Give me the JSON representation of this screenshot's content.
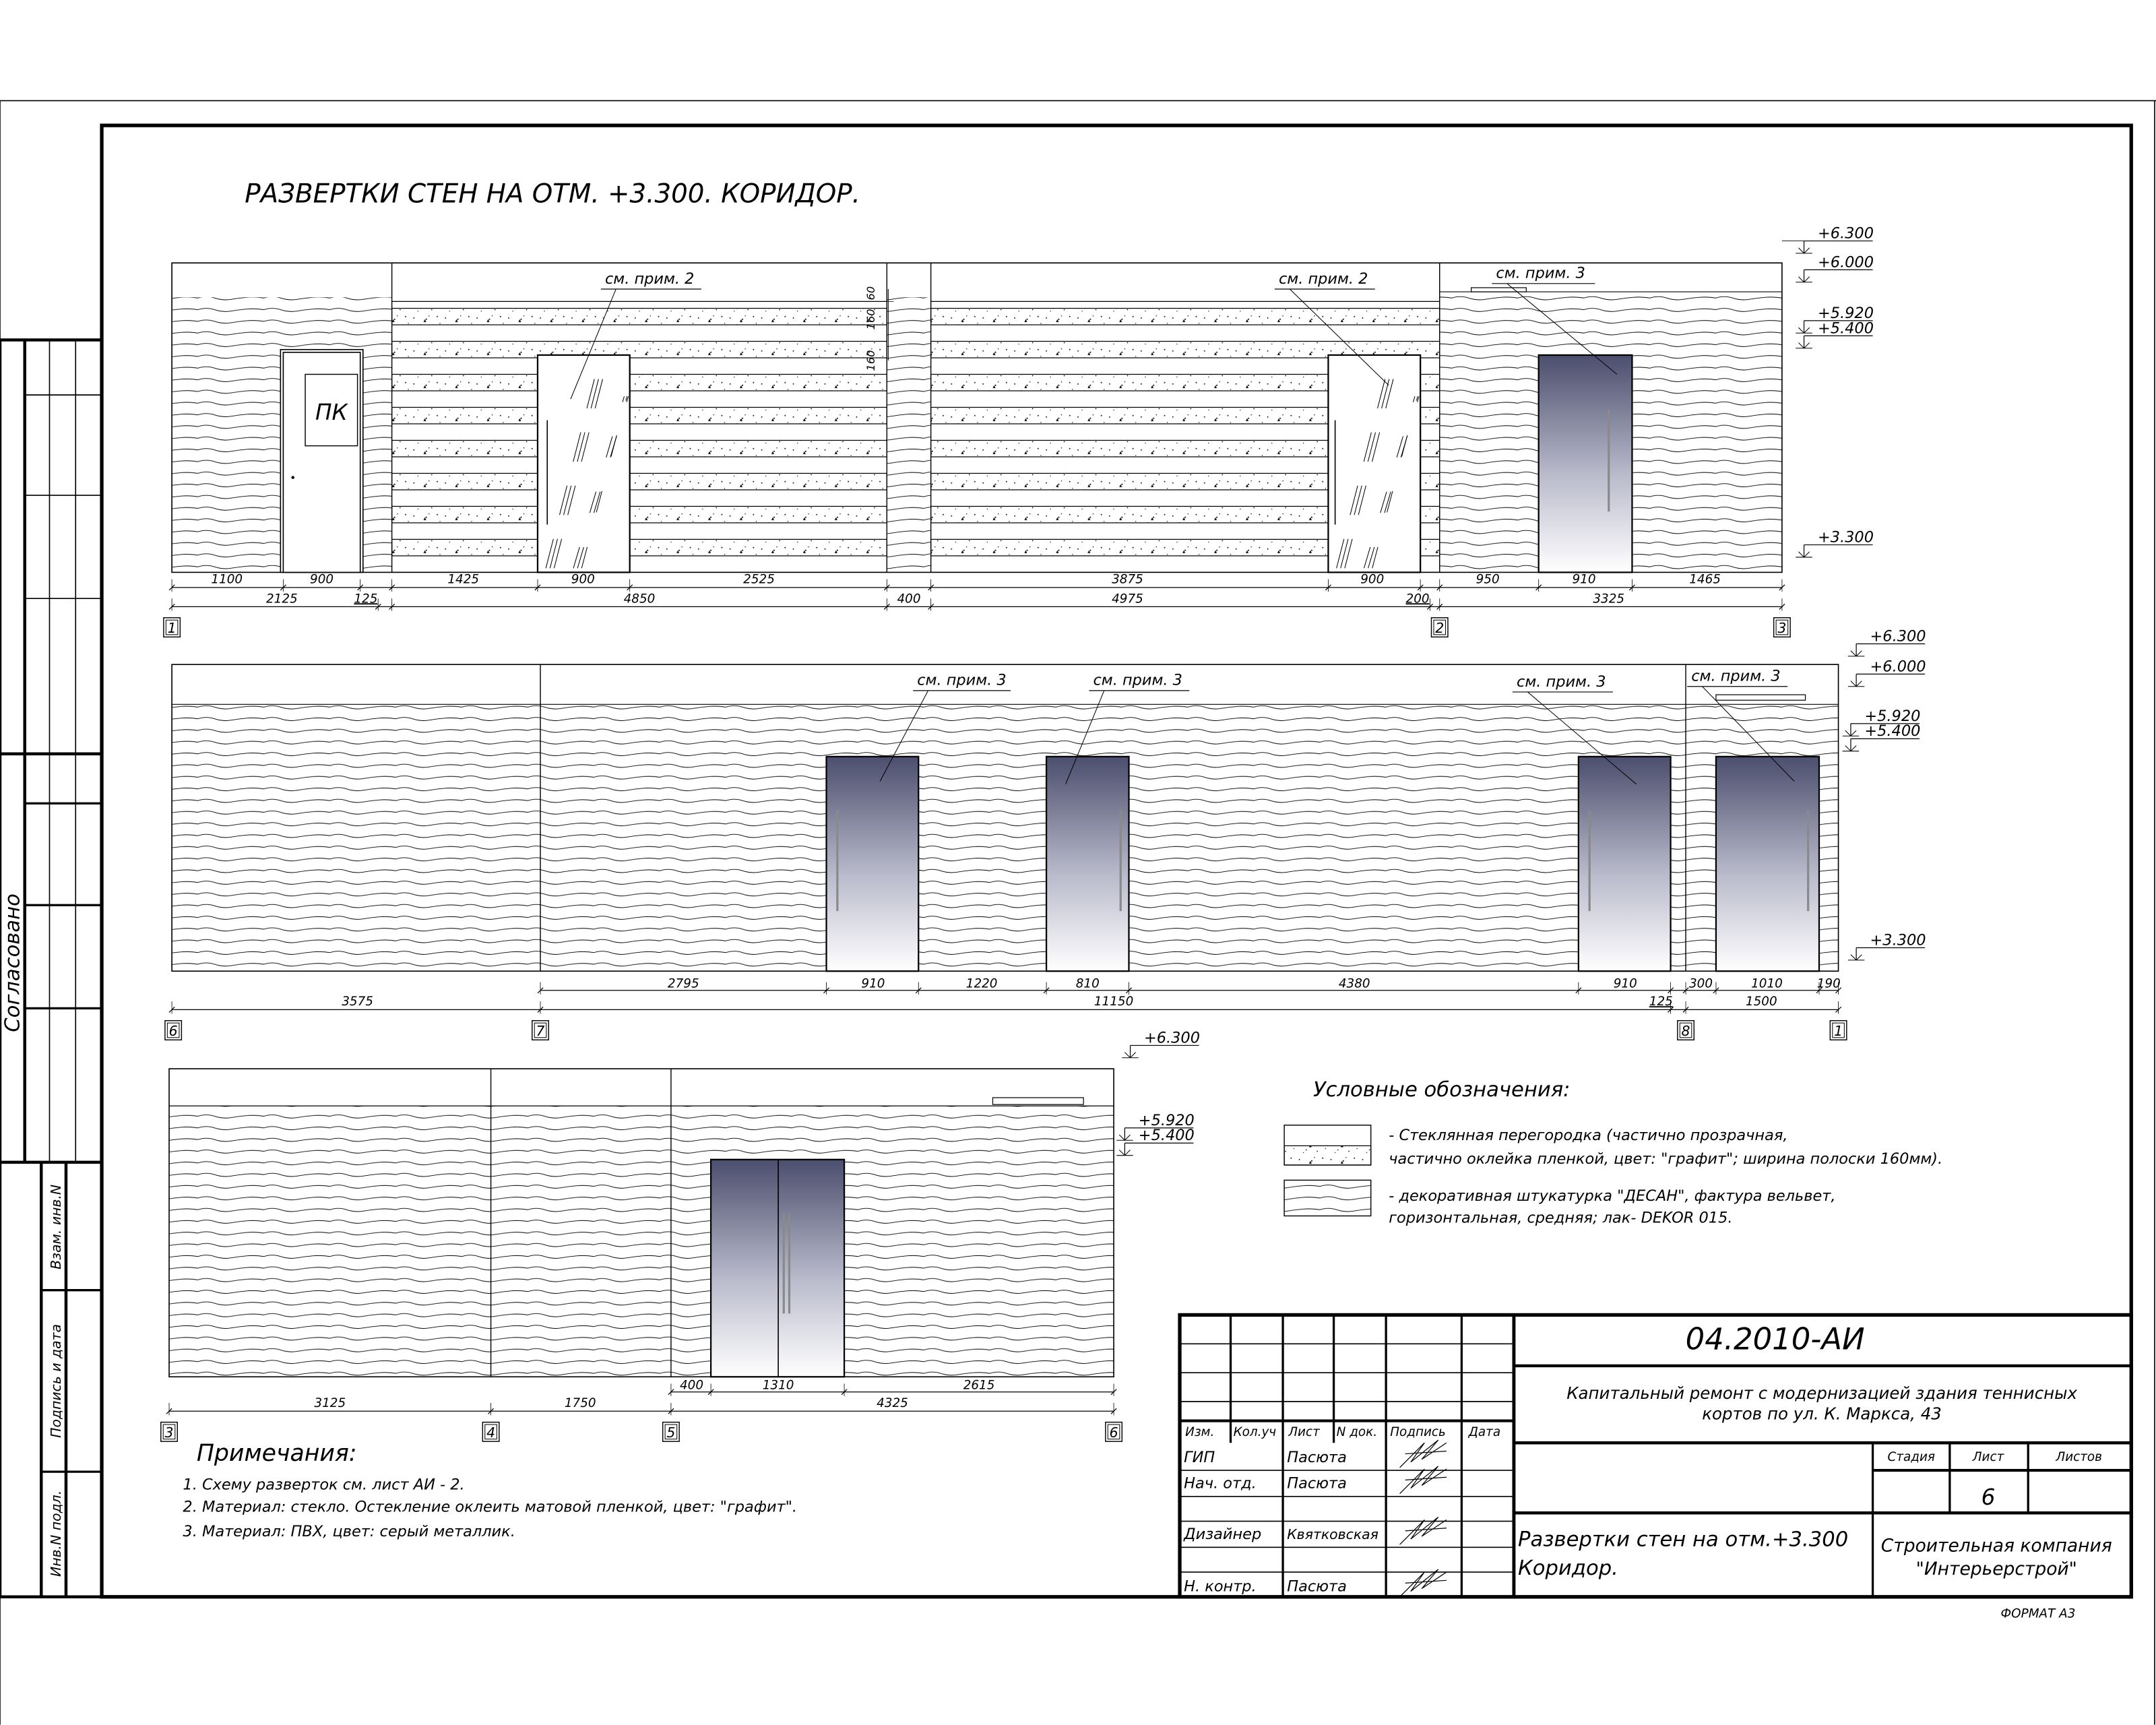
{
  "sheet": {
    "title": "РАЗВЕРТКИ СТЕН НА ОТМ. +3.300. КОРИДОР.",
    "format": "ФОРМАТ А3"
  },
  "colors": {
    "line": "#000000",
    "door_gradient_top": "#4b4e6d",
    "door_gradient_bottom": "#ffffff",
    "handle": "#8a8a8a"
  },
  "left_stamp": {
    "approved": "Согласовано",
    "replaced_inv": "Взам. инв.N",
    "signature_date": "Подпись и дата",
    "inv_original": "Инв.N подл."
  },
  "elevation_1": {
    "door_sign": "ПК",
    "callouts": [
      "см. прим. 2",
      "см. прим. 2",
      "см. прим. 3"
    ],
    "strip_dims": [
      "60",
      "160",
      "160"
    ],
    "dims_row1": [
      "1100",
      "900",
      "1425",
      "900",
      "2525",
      "3875",
      "900",
      "950",
      "910",
      "1465"
    ],
    "dims_row2": [
      "2125",
      "125",
      "4850",
      "400",
      "4975",
      "200",
      "3325"
    ],
    "axes": [
      "1",
      "2",
      "3"
    ],
    "levels": [
      "+6.300",
      "+6.000",
      "+5.920",
      "+5.400",
      "+3.300"
    ]
  },
  "elevation_2": {
    "callouts": [
      "см. прим. 3",
      "см. прим. 3",
      "см. прим. 3",
      "см. прим. 3"
    ],
    "dims_row1": [
      "2795",
      "910",
      "1220",
      "810",
      "4380",
      "910",
      "300",
      "1010",
      "190"
    ],
    "dims_row2": [
      "3575",
      "11150",
      "125",
      "1500"
    ],
    "axes": [
      "6",
      "7",
      "8",
      "1"
    ],
    "levels": [
      "+6.300",
      "+6.000",
      "+5.920",
      "+5.400",
      "+3.300"
    ]
  },
  "elevation_3": {
    "dims_row1": [
      "400",
      "1310",
      "2615"
    ],
    "dims_row2": [
      "3125",
      "1750",
      "4325"
    ],
    "axes": [
      "3",
      "4",
      "5",
      "6"
    ],
    "levels": [
      "+6.300",
      "+5.920",
      "+5.400"
    ]
  },
  "legend": {
    "title": "Условные обозначения:",
    "items": [
      {
        "line1": "- Стеклянная перегородка (частично прозрачная,",
        "line2": "частично оклейка пленкой, цвет: \"графит\"; ширина полоски 160мм)."
      },
      {
        "line1": "- декоративная штукатурка \"ДЕСАН\", фактура вельвет,",
        "line2": "горизонтальная, средняя; лак- DEKOR 015."
      }
    ]
  },
  "notes": {
    "title": "Примечания:",
    "items": [
      "1. Схему разверток см. лист АИ - 2.",
      "2. Материал: стекло. Остекление оклеить матовой пленкой, цвет: \"графит\".",
      "3. Материал: ПВХ, цвет: серый металлик."
    ]
  },
  "title_block": {
    "code": "04.2010-АИ",
    "project_line1": "Капитальный ремонт с модернизацией здания теннисных",
    "project_line2": "кортов по ул. К. Маркса, 43",
    "headers": [
      "Изм.",
      "Кол.уч",
      "Лист",
      "N док.",
      "Подпись",
      "Дата"
    ],
    "rows": [
      {
        "role": "ГИП",
        "name": "Пасюта"
      },
      {
        "role": "Нач. отд.",
        "name": "Пасюта"
      },
      {
        "role": "Дизайнер",
        "name": "Квятковская"
      },
      {
        "role": "Н. контр.",
        "name": "Пасюта"
      }
    ],
    "stage_label": "Стадия",
    "sheet_label": "Лист",
    "sheets_label": "Листов",
    "sheet_number": "6",
    "drawing_title_line1": "Развертки стен на отм.+3.300",
    "drawing_title_line2": "Коридор.",
    "company_line1": "Строительная компания",
    "company_line2": "\"Интерьерстрой\""
  }
}
